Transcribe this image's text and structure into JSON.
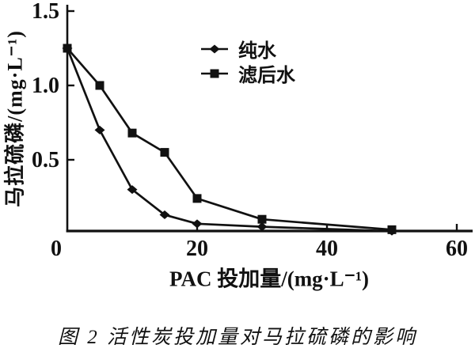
{
  "chart_data": {
    "type": "line",
    "title": "",
    "xlabel": "PAC 投加量/(mg·L⁻¹)",
    "ylabel": "马拉硫磷/(mg·L⁻¹)",
    "caption": "图 2  活性炭投加量对马拉硫磷的影响",
    "xlim": [
      0,
      60
    ],
    "ylim": [
      0,
      1.5
    ],
    "xticks": [
      0,
      20,
      40,
      60
    ],
    "xtick_labels": [
      "0",
      "20",
      "40",
      "60"
    ],
    "yticks": [
      0.5,
      1.0,
      1.5
    ],
    "ytick_labels": [
      "0.5",
      "1.0",
      "1.5"
    ],
    "grid": false,
    "legend_position": "inside-upper-center",
    "line_color": "#111111",
    "background_color": "#ffffff",
    "series": [
      {
        "id": "pure-water",
        "name": "纯水",
        "marker": "diamond",
        "x": [
          0,
          5,
          10,
          15,
          20,
          30,
          50
        ],
        "y": [
          1.25,
          0.7,
          0.3,
          0.13,
          0.07,
          0.05,
          0.02
        ]
      },
      {
        "id": "filtered-water",
        "name": "滤后水",
        "marker": "square",
        "x": [
          0,
          5,
          10,
          15,
          20,
          30,
          50
        ],
        "y": [
          1.25,
          1.0,
          0.68,
          0.55,
          0.24,
          0.1,
          0.03
        ]
      }
    ]
  }
}
